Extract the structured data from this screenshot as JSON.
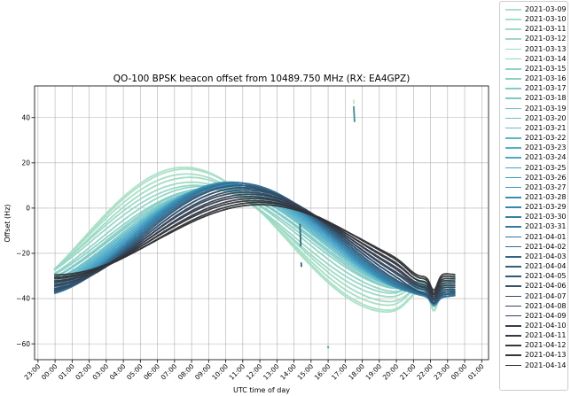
{
  "chart_data": {
    "type": "line",
    "title": "QO-100 BPSK beacon offset from 10489.750 MHz (RX: EA4GPZ)",
    "xlabel": "UTC time of day",
    "ylabel": "Offset (Hz)",
    "xticks": [
      "23:00",
      "00:00",
      "01:00",
      "02:00",
      "03:00",
      "04:00",
      "05:00",
      "06:00",
      "07:00",
      "08:00",
      "09:00",
      "10:00",
      "11:00",
      "12:00",
      "13:00",
      "14:00",
      "15:00",
      "16:00",
      "17:00",
      "18:00",
      "19:00",
      "20:00",
      "21:00",
      "22:00",
      "23:00",
      "00:00",
      "01:00"
    ],
    "yticks": [
      -60,
      -40,
      -20,
      0,
      20,
      40
    ],
    "xlim_hours": [
      -1.2,
      25.4
    ],
    "ylim": [
      -67,
      54
    ],
    "grid": true,
    "legend": "outside-right",
    "series": [
      {
        "name": "2021-03-09",
        "color": "#a8e1c5",
        "a": 25,
        "b": -20,
        "dev": 6
      },
      {
        "name": "2021-03-10",
        "color": "#a5dfc4",
        "a": 24,
        "b": -20,
        "dev": 6
      },
      {
        "name": "2021-03-11",
        "color": "#a1ddc4",
        "a": 22,
        "b": -19,
        "dev": 6
      },
      {
        "name": "2021-03-12",
        "color": "#9cdbc3",
        "a": 20,
        "b": -19,
        "dev": 5
      },
      {
        "name": "2021-03-13",
        "color": "#98d9c3",
        "a": 18,
        "b": -18,
        "dev": 5
      },
      {
        "name": "2021-03-14",
        "color": "#93d6c3",
        "a": 16,
        "b": -18,
        "dev": 5
      },
      {
        "name": "2021-03-15",
        "color": "#8ed3c3",
        "a": 14,
        "b": -19,
        "dev": 4
      },
      {
        "name": "2021-03-16",
        "color": "#88d0c3",
        "a": 12,
        "b": -19,
        "dev": 4
      },
      {
        "name": "2021-03-17",
        "color": "#82ccc4",
        "a": 11,
        "b": -20,
        "dev": 4
      },
      {
        "name": "2021-03-18",
        "color": "#7bc8c5",
        "a": 10,
        "b": -20,
        "dev": 3
      },
      {
        "name": "2021-03-19",
        "color": "#74c4c6",
        "a": 9,
        "b": -21,
        "dev": 3
      },
      {
        "name": "2021-03-20",
        "color": "#6cbfc7",
        "a": 8,
        "b": -21,
        "dev": 3
      },
      {
        "name": "2021-03-21",
        "color": "#64bac8",
        "a": 8,
        "b": -22,
        "dev": 2
      },
      {
        "name": "2021-03-22",
        "color": "#5cb5c9",
        "a": 7,
        "b": -22,
        "dev": 2
      },
      {
        "name": "2021-03-23",
        "color": "#53afca",
        "a": 7,
        "b": -23,
        "dev": 2
      },
      {
        "name": "2021-03-24",
        "color": "#4ba9c9",
        "a": 6,
        "b": -23,
        "dev": 2
      },
      {
        "name": "2021-03-25",
        "color": "#45a2c6",
        "a": 6,
        "b": -24,
        "dev": 1
      },
      {
        "name": "2021-03-26",
        "color": "#409bc1",
        "a": 5,
        "b": -24,
        "dev": 1
      },
      {
        "name": "2021-03-27",
        "color": "#3d94bb",
        "a": 5,
        "b": -25,
        "dev": 1
      },
      {
        "name": "2021-03-28",
        "color": "#3a8db4",
        "a": 4,
        "b": -25,
        "dev": 1
      },
      {
        "name": "2021-03-29",
        "color": "#3886ad",
        "a": 4,
        "b": -25,
        "dev": 0
      },
      {
        "name": "2021-03-30",
        "color": "#367fa5",
        "a": 3,
        "b": -25,
        "dev": 0
      },
      {
        "name": "2021-03-31",
        "color": "#35789d",
        "a": 3,
        "b": -25,
        "dev": 0
      },
      {
        "name": "2021-04-01",
        "color": "#357195",
        "a": 2,
        "b": -25,
        "dev": 0
      },
      {
        "name": "2021-04-02",
        "color": "#356a8c",
        "a": 2,
        "b": -24,
        "dev": -1
      },
      {
        "name": "2021-04-03",
        "color": "#356384",
        "a": 1,
        "b": -24,
        "dev": -1
      },
      {
        "name": "2021-04-04",
        "color": "#355d7b",
        "a": 1,
        "b": -24,
        "dev": -1
      },
      {
        "name": "2021-04-05",
        "color": "#355773",
        "a": 0,
        "b": -23,
        "dev": -2
      },
      {
        "name": "2021-04-06",
        "color": "#35516a",
        "a": 0,
        "b": -23,
        "dev": -2
      },
      {
        "name": "2021-04-07",
        "color": "#354b62",
        "a": -1,
        "b": -22,
        "dev": -2
      },
      {
        "name": "2021-04-08",
        "color": "#35465a",
        "a": -1,
        "b": -21,
        "dev": -2
      },
      {
        "name": "2021-04-09",
        "color": "#354152",
        "a": -2,
        "b": -20,
        "dev": -3
      },
      {
        "name": "2021-04-10",
        "color": "#353d4b",
        "a": -2,
        "b": -19,
        "dev": -3
      },
      {
        "name": "2021-04-11",
        "color": "#343a44",
        "a": -3,
        "b": -18,
        "dev": -3
      },
      {
        "name": "2021-04-12",
        "color": "#33373e",
        "a": -3,
        "b": -17,
        "dev": -4
      },
      {
        "name": "2021-04-13",
        "color": "#323539",
        "a": -4,
        "b": -16,
        "dev": -4
      },
      {
        "name": "2021-04-14",
        "color": "#303235",
        "a": -4,
        "b": -15,
        "dev": -4
      }
    ],
    "outliers": [
      {
        "color": "#2f6a7a",
        "x": [
          14.35,
          14.4
        ],
        "y": [
          -7,
          -17
        ]
      },
      {
        "color": "#2f6a7a",
        "x": [
          14.42,
          14.44
        ],
        "y": [
          -24,
          -26
        ]
      },
      {
        "color": "#3b8e96",
        "x": [
          17.5,
          17.55
        ],
        "y": [
          45,
          38
        ]
      },
      {
        "color": "#b9e8cc",
        "x": [
          17.5,
          17.52
        ],
        "y": [
          48,
          46
        ]
      },
      {
        "color": "#3ca6c6",
        "x": [
          15.98,
          16.02
        ],
        "y": [
          -61,
          -62
        ]
      }
    ]
  }
}
